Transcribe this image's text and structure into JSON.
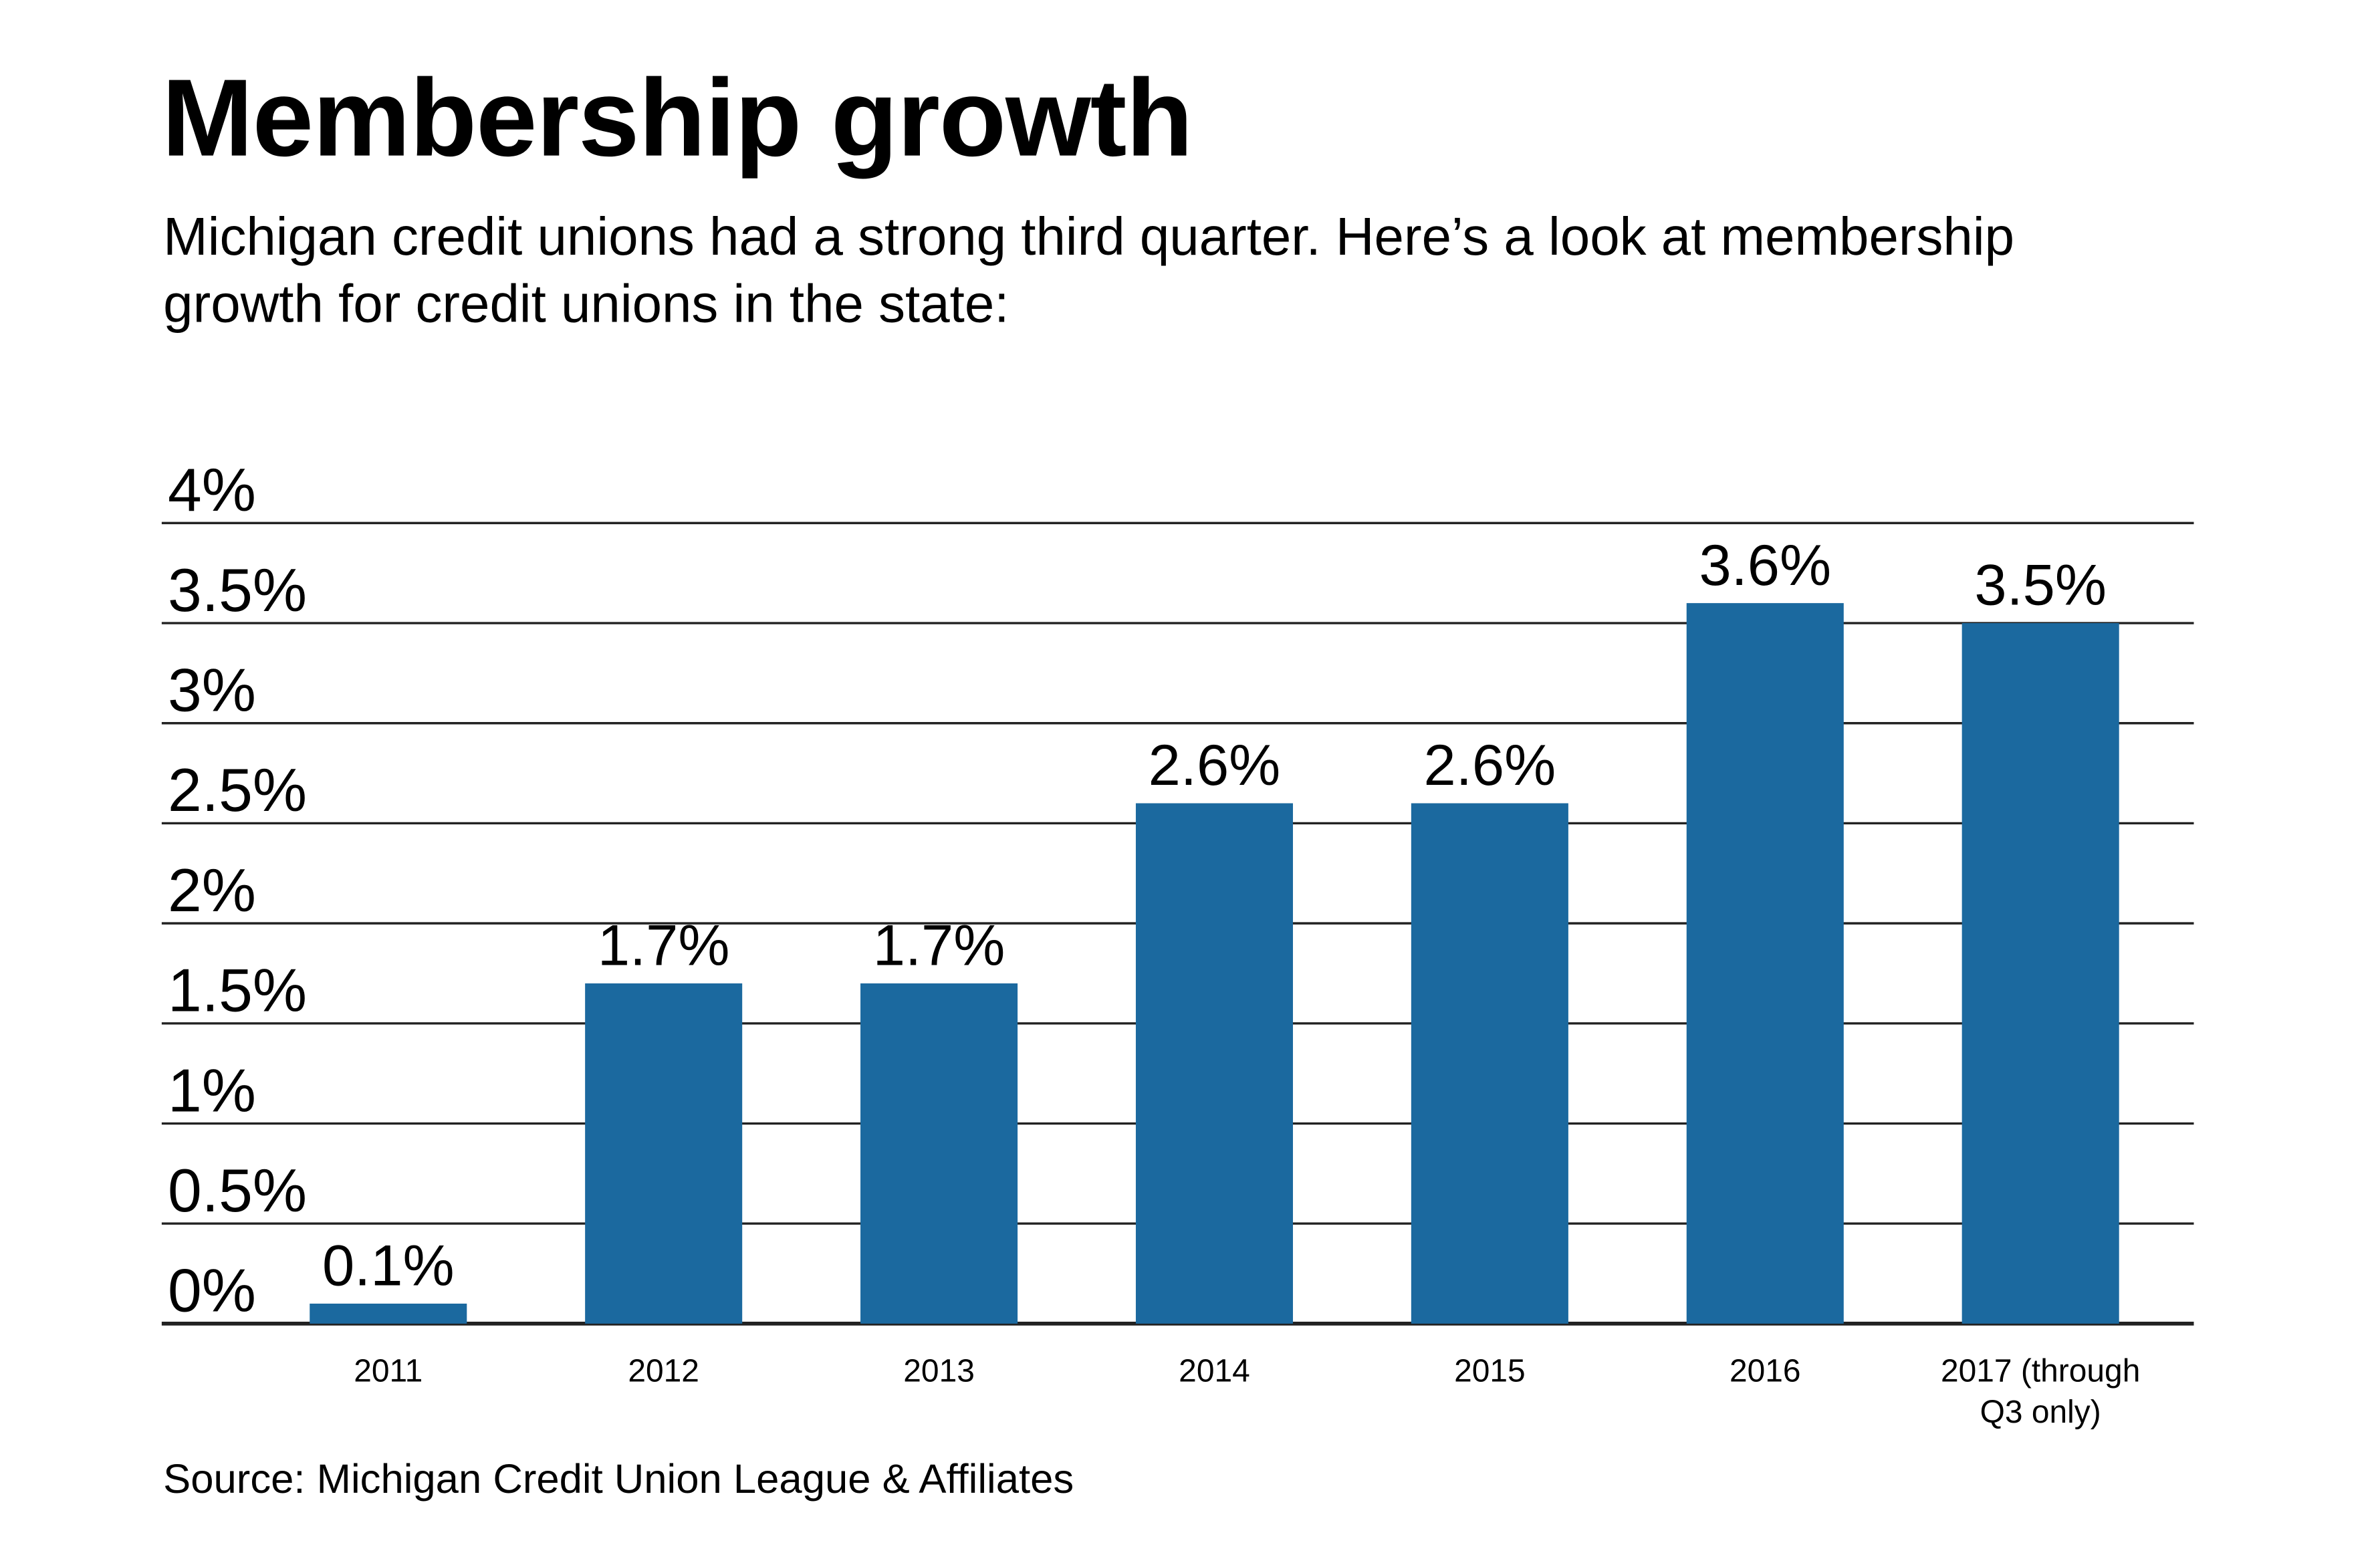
{
  "title": "Membership growth",
  "subtitle": "Michigan credit unions had a strong third quarter. Here’s a look at membership growth for credit unions in the state:",
  "source": "Source: Michigan Credit Union League & Affiliates",
  "chart_data": {
    "type": "bar",
    "categories": [
      "2011",
      "2012",
      "2013",
      "2014",
      "2015",
      "2016",
      "2017 (through Q3 only)"
    ],
    "category_lines": [
      [
        "2011"
      ],
      [
        "2012"
      ],
      [
        "2013"
      ],
      [
        "2014"
      ],
      [
        "2015"
      ],
      [
        "2016"
      ],
      [
        "2017 (through",
        "Q3 only)"
      ]
    ],
    "values": [
      0.1,
      1.7,
      1.7,
      2.6,
      2.6,
      3.6,
      3.5
    ],
    "data_labels": [
      "0.1%",
      "1.7%",
      "1.7%",
      "2.6%",
      "2.6%",
      "3.6%",
      "3.5%"
    ],
    "yticks": [
      0,
      0.5,
      1,
      1.5,
      2,
      2.5,
      3,
      3.5,
      4
    ],
    "ytick_labels": [
      "0%",
      "0.5%",
      "1%",
      "1.5%",
      "2%",
      "2.5%",
      "3%",
      "3.5%",
      "4%"
    ],
    "ylim": [
      0,
      4
    ],
    "grid": true,
    "bar_color": "#1b699f",
    "xlabel": "",
    "ylabel": ""
  }
}
